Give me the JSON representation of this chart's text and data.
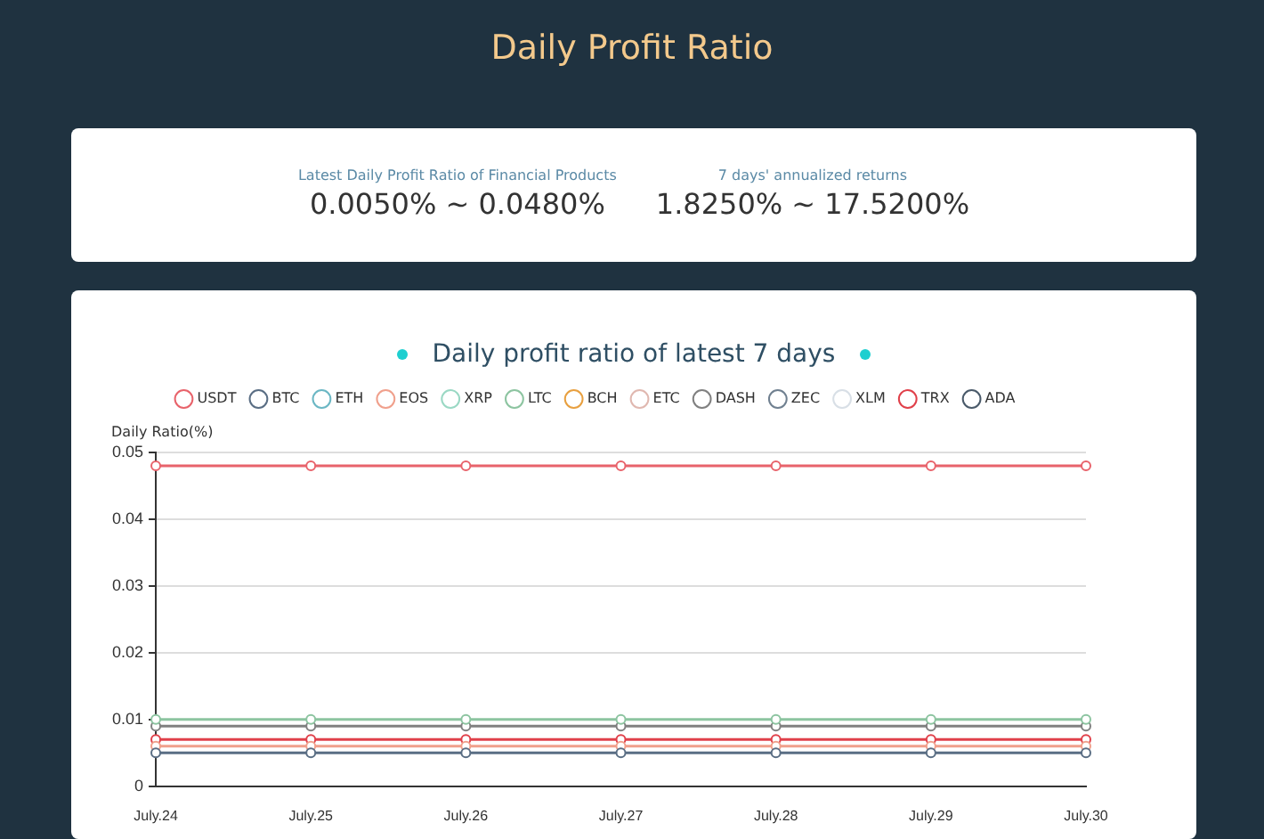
{
  "chart_data": [
    {
      "type": "other",
      "title": "Daily Profit Ratio",
      "annotations": [
        "Latest Daily Profit Ratio of Financial Products",
        "0.0050% ~ 0.0480%",
        "7 days' annualized returns",
        "1.8250% ~ 17.5200%"
      ]
    },
    {
      "type": "line",
      "title": "Daily profit ratio of latest 7 days",
      "ylabel": "Daily Ratio(%)",
      "categories": [
        "July.24",
        "July.25",
        "July.26",
        "July.27",
        "July.28",
        "July.29",
        "July.30"
      ],
      "series": [
        {
          "name": "USDT",
          "color": "#e8636b",
          "values": [
            0.048,
            0.048,
            0.048,
            0.048,
            0.048,
            0.048,
            0.048
          ]
        },
        {
          "name": "BTC",
          "color": "#5a6e84",
          "values": [
            0.005,
            0.005,
            0.005,
            0.005,
            0.005,
            0.005,
            0.005
          ]
        },
        {
          "name": "ETH",
          "color": "#6bb7c4",
          "values": [
            null,
            null,
            null,
            null,
            null,
            null,
            null
          ]
        },
        {
          "name": "EOS",
          "color": "#f0a08c",
          "values": [
            0.006,
            0.006,
            0.006,
            0.006,
            0.006,
            0.006,
            0.006
          ]
        },
        {
          "name": "XRP",
          "color": "#9ad8c4",
          "values": [
            null,
            null,
            null,
            null,
            null,
            null,
            null
          ]
        },
        {
          "name": "LTC",
          "color": "#8cc4a0",
          "values": [
            0.01,
            0.01,
            0.01,
            0.01,
            0.01,
            0.01,
            0.01
          ]
        },
        {
          "name": "BCH",
          "color": "#e8a040",
          "values": [
            null,
            null,
            null,
            null,
            null,
            null,
            null
          ]
        },
        {
          "name": "ETC",
          "color": "#e0b8b0",
          "values": [
            null,
            null,
            null,
            null,
            null,
            null,
            null
          ]
        },
        {
          "name": "DASH",
          "color": "#808080",
          "values": [
            0.009,
            0.009,
            0.009,
            0.009,
            0.009,
            0.009,
            0.009
          ]
        },
        {
          "name": "ZEC",
          "color": "#708090",
          "values": [
            null,
            null,
            null,
            null,
            null,
            null,
            null
          ]
        },
        {
          "name": "XLM",
          "color": "#d8dfe6",
          "values": [
            null,
            null,
            null,
            null,
            null,
            null,
            null
          ]
        },
        {
          "name": "TRX",
          "color": "#e0404a",
          "values": [
            0.007,
            0.007,
            0.007,
            0.007,
            0.007,
            0.007,
            0.007
          ]
        },
        {
          "name": "ADA",
          "color": "#4a5a6a",
          "values": [
            null,
            null,
            null,
            null,
            null,
            null,
            null
          ]
        }
      ],
      "ylim": [
        0,
        0.05
      ],
      "yticks": [
        0,
        0.01,
        0.02,
        0.03,
        0.04,
        0.05
      ],
      "grid": "y",
      "legend": "top",
      "marker": "circle",
      "line_style": "solid"
    }
  ]
}
